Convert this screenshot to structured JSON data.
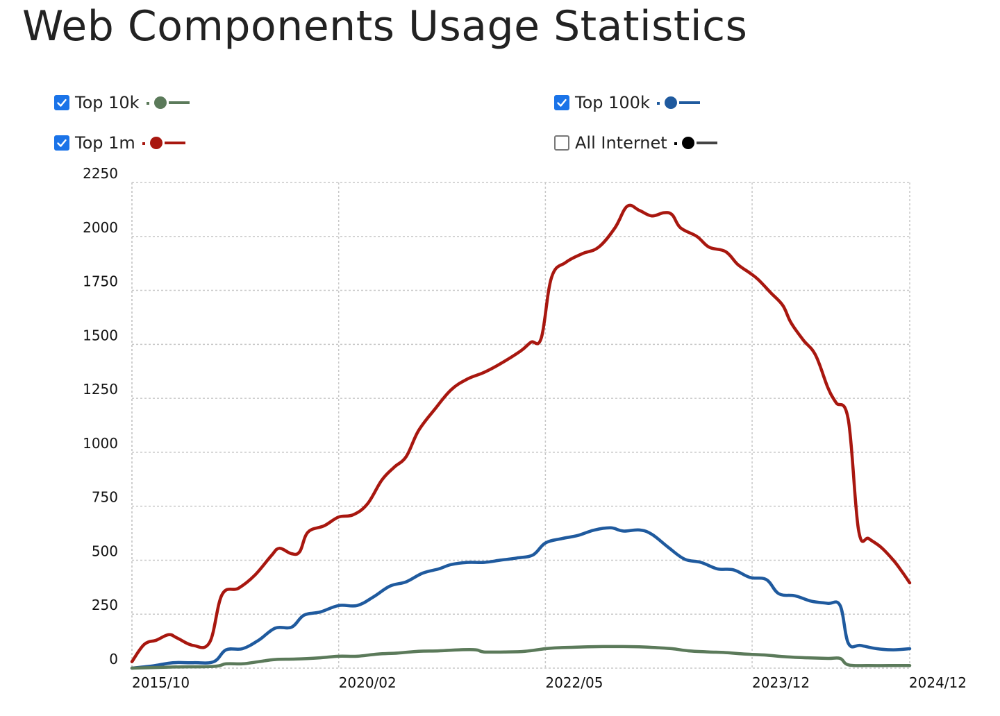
{
  "page_title": "Web Components Usage Statistics",
  "legend": [
    {
      "label": "Top 10k",
      "checked": true,
      "color": "#5b7a5a"
    },
    {
      "label": "Top 100k",
      "checked": true,
      "color": "#1f5a9e"
    },
    {
      "label": "Top 1m",
      "checked": true,
      "color": "#a8170f"
    },
    {
      "label": "All Internet",
      "checked": false,
      "color": "#000000"
    }
  ],
  "chart_data": {
    "type": "line",
    "title": "Web Components Usage Statistics",
    "xlabel": "",
    "ylabel": "",
    "ylim": [
      0,
      2250
    ],
    "yticks": [
      0,
      250,
      500,
      750,
      1000,
      1250,
      1500,
      1750,
      2000,
      2250
    ],
    "xtick_labels": [
      "2015/10",
      "2020/02",
      "2022/05",
      "2023/12",
      "2024/12"
    ],
    "grid": true,
    "legend_position": "top",
    "x": [
      0,
      1,
      2,
      3,
      4,
      5,
      6,
      7,
      8,
      9,
      10,
      11,
      12,
      13,
      14,
      15,
      16,
      17,
      18,
      19,
      20,
      21,
      22,
      23,
      24,
      25,
      26,
      27,
      28,
      29,
      30,
      31,
      32,
      33,
      34,
      35,
      36,
      37,
      38,
      39,
      40,
      41,
      42,
      43,
      44,
      45,
      46,
      47,
      48,
      49,
      50,
      51,
      52,
      53,
      54,
      55,
      56,
      57,
      58,
      59,
      60,
      61,
      62,
      63,
      64,
      65,
      66,
      67,
      68,
      69,
      70,
      71,
      72,
      73,
      74,
      75,
      76,
      77,
      78,
      79,
      80,
      81,
      82,
      83,
      84,
      85,
      86,
      87,
      88,
      89,
      90,
      91,
      92,
      93,
      94,
      95,
      96,
      97,
      98,
      99,
      100,
      101,
      102,
      103,
      104,
      105,
      106,
      107,
      108,
      109,
      110,
      111,
      112,
      113,
      114,
      115,
      116,
      117,
      118,
      119,
      120,
      121,
      122,
      123,
      124,
      125,
      126,
      127,
      128,
      129,
      130,
      131,
      132,
      133,
      134,
      135,
      136,
      137,
      138,
      139,
      140,
      141,
      142,
      143,
      144,
      145,
      146,
      147,
      148,
      149,
      150,
      151,
      152,
      153,
      154,
      155,
      156,
      157,
      158,
      159,
      160,
      161,
      162,
      163,
      164,
      165,
      166,
      167,
      168,
      169,
      170,
      171,
      172,
      173,
      174,
      175,
      176,
      177,
      178,
      179,
      180,
      181,
      182,
      183,
      184,
      185,
      186,
      187,
      188,
      189,
      190,
      191,
      192,
      193,
      194,
      195,
      196,
      197,
      198,
      199,
      200,
      201,
      202,
      203,
      204,
      205,
      206,
      207,
      208,
      209,
      210,
      211,
      212,
      213,
      214,
      215,
      216,
      217,
      218,
      219,
      220,
      221,
      222,
      223,
      224,
      225,
      226,
      227,
      228,
      229,
      230,
      231,
      232,
      233,
      234,
      235,
      236,
      237,
      238,
      239,
      240,
      241,
      242,
      243,
      244,
      245,
      246,
      247,
      248,
      249,
      250,
      251,
      252,
      253,
      254,
      255,
      256,
      257,
      258,
      259,
      260,
      261,
      262,
      263,
      264,
      265,
      266,
      267,
      268,
      269,
      270,
      271,
      272,
      273,
      274,
      275,
      276,
      277,
      278,
      279,
      280,
      281,
      282,
      283,
      284,
      285,
      286,
      287,
      288,
      289,
      290,
      291,
      292,
      293,
      294,
      295,
      296,
      297,
      298,
      299,
      300,
      301,
      302,
      303,
      304,
      305,
      306,
      307,
      308,
      309,
      310,
      311,
      312,
      313,
      314,
      315,
      316,
      317,
      318,
      319,
      320,
      321,
      322,
      323,
      324,
      325,
      326,
      327,
      328,
      329,
      330,
      331,
      332,
      333,
      334,
      335,
      336,
      337,
      338,
      339,
      340,
      341,
      342,
      343,
      344,
      345,
      346,
      347,
      348,
      349,
      350,
      351,
      352,
      353,
      354,
      355,
      356,
      357,
      358,
      359,
      360,
      361,
      362,
      363,
      364,
      365,
      366,
      367,
      368,
      369,
      370,
      371,
      372,
      373,
      374,
      375,
      376,
      377,
      378,
      379,
      380
    ],
    "xtick_positions": [
      0,
      101,
      202,
      303,
      380
    ],
    "series": [
      {
        "name": "Top 1m",
        "color": "#a8170f",
        "points": [
          [
            0,
            30
          ],
          [
            6,
            110
          ],
          [
            12,
            130
          ],
          [
            18,
            155
          ],
          [
            22,
            140
          ],
          [
            30,
            105
          ],
          [
            38,
            120
          ],
          [
            44,
            340
          ],
          [
            52,
            370
          ],
          [
            60,
            430
          ],
          [
            68,
            520
          ],
          [
            72,
            555
          ],
          [
            78,
            530
          ],
          [
            82,
            540
          ],
          [
            86,
            630
          ],
          [
            94,
            660
          ],
          [
            101,
            700
          ],
          [
            108,
            710
          ],
          [
            115,
            760
          ],
          [
            122,
            870
          ],
          [
            128,
            930
          ],
          [
            134,
            980
          ],
          [
            140,
            1100
          ],
          [
            148,
            1200
          ],
          [
            156,
            1290
          ],
          [
            164,
            1340
          ],
          [
            172,
            1370
          ],
          [
            180,
            1410
          ],
          [
            190,
            1470
          ],
          [
            195,
            1510
          ],
          [
            200,
            1530
          ],
          [
            205,
            1810
          ],
          [
            212,
            1880
          ],
          [
            220,
            1920
          ],
          [
            228,
            1950
          ],
          [
            236,
            2040
          ],
          [
            242,
            2140
          ],
          [
            248,
            2120
          ],
          [
            254,
            2095
          ],
          [
            260,
            2110
          ],
          [
            264,
            2100
          ],
          [
            268,
            2040
          ],
          [
            276,
            2000
          ],
          [
            282,
            1950
          ],
          [
            290,
            1930
          ],
          [
            296,
            1870
          ],
          [
            302,
            1830
          ],
          [
            306,
            1800
          ],
          [
            312,
            1740
          ],
          [
            318,
            1680
          ],
          [
            322,
            1600
          ],
          [
            328,
            1520
          ],
          [
            334,
            1450
          ],
          [
            340,
            1300
          ],
          [
            344,
            1230
          ],
          [
            350,
            1150
          ],
          [
            355,
            640
          ],
          [
            360,
            600
          ],
          [
            366,
            560
          ],
          [
            372,
            500
          ],
          [
            376,
            450
          ],
          [
            380,
            395
          ]
        ]
      },
      {
        "name": "Top 100k",
        "color": "#1f5a9e",
        "points": [
          [
            0,
            0
          ],
          [
            10,
            10
          ],
          [
            20,
            25
          ],
          [
            30,
            25
          ],
          [
            40,
            30
          ],
          [
            46,
            85
          ],
          [
            54,
            90
          ],
          [
            62,
            130
          ],
          [
            70,
            185
          ],
          [
            78,
            190
          ],
          [
            84,
            245
          ],
          [
            92,
            260
          ],
          [
            101,
            290
          ],
          [
            110,
            290
          ],
          [
            118,
            330
          ],
          [
            126,
            380
          ],
          [
            134,
            400
          ],
          [
            142,
            440
          ],
          [
            150,
            460
          ],
          [
            156,
            480
          ],
          [
            164,
            490
          ],
          [
            172,
            490
          ],
          [
            180,
            500
          ],
          [
            188,
            510
          ],
          [
            196,
            525
          ],
          [
            202,
            580
          ],
          [
            210,
            600
          ],
          [
            218,
            615
          ],
          [
            226,
            640
          ],
          [
            234,
            650
          ],
          [
            240,
            635
          ],
          [
            248,
            640
          ],
          [
            254,
            620
          ],
          [
            262,
            560
          ],
          [
            270,
            505
          ],
          [
            278,
            490
          ],
          [
            286,
            460
          ],
          [
            294,
            455
          ],
          [
            302,
            420
          ],
          [
            310,
            410
          ],
          [
            316,
            345
          ],
          [
            324,
            335
          ],
          [
            332,
            310
          ],
          [
            340,
            300
          ],
          [
            346,
            290
          ],
          [
            350,
            115
          ],
          [
            356,
            105
          ],
          [
            364,
            90
          ],
          [
            372,
            85
          ],
          [
            380,
            90
          ]
        ]
      },
      {
        "name": "Top 10k",
        "color": "#5b7a5a",
        "points": [
          [
            0,
            0
          ],
          [
            20,
            5
          ],
          [
            40,
            8
          ],
          [
            46,
            20
          ],
          [
            54,
            20
          ],
          [
            62,
            30
          ],
          [
            70,
            40
          ],
          [
            80,
            42
          ],
          [
            92,
            48
          ],
          [
            101,
            55
          ],
          [
            110,
            55
          ],
          [
            120,
            65
          ],
          [
            130,
            70
          ],
          [
            140,
            78
          ],
          [
            150,
            80
          ],
          [
            160,
            85
          ],
          [
            168,
            85
          ],
          [
            172,
            75
          ],
          [
            182,
            75
          ],
          [
            192,
            78
          ],
          [
            202,
            90
          ],
          [
            210,
            95
          ],
          [
            220,
            98
          ],
          [
            230,
            100
          ],
          [
            240,
            100
          ],
          [
            250,
            98
          ],
          [
            256,
            95
          ],
          [
            264,
            90
          ],
          [
            272,
            80
          ],
          [
            282,
            75
          ],
          [
            290,
            72
          ],
          [
            300,
            65
          ],
          [
            310,
            60
          ],
          [
            320,
            52
          ],
          [
            330,
            48
          ],
          [
            340,
            45
          ],
          [
            346,
            45
          ],
          [
            350,
            15
          ],
          [
            360,
            12
          ],
          [
            370,
            12
          ],
          [
            380,
            12
          ]
        ]
      }
    ]
  }
}
